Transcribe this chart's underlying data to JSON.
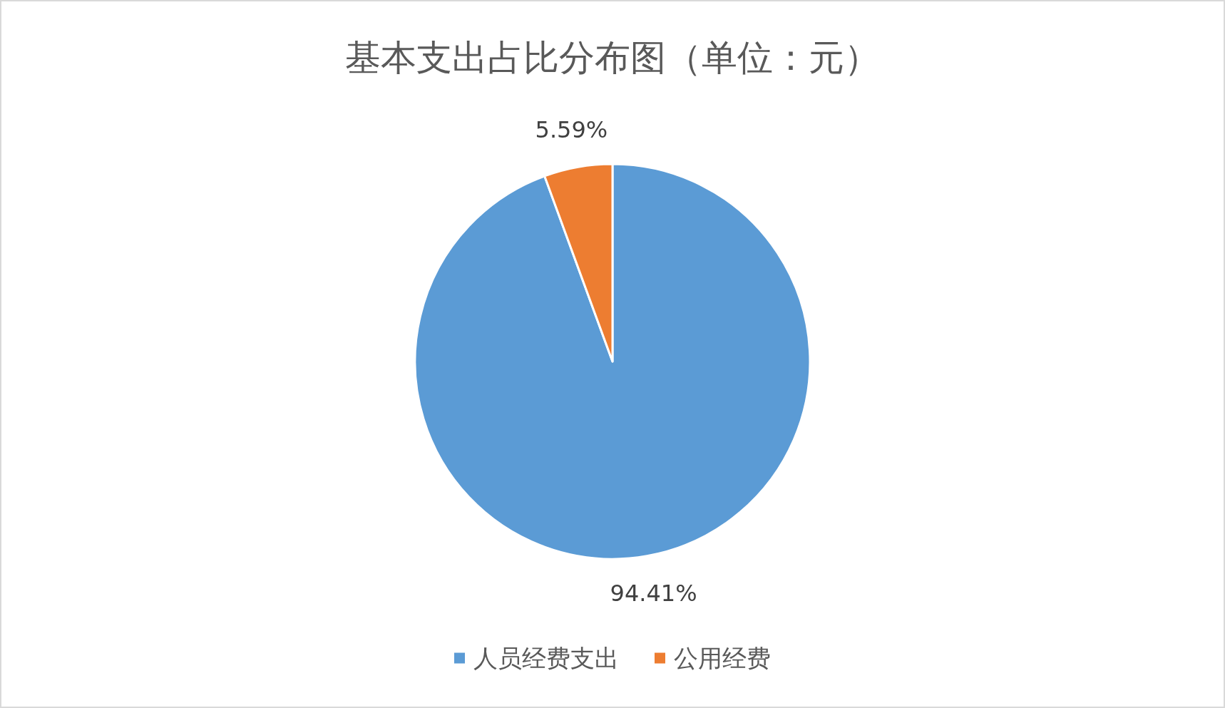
{
  "chart_data": {
    "type": "pie",
    "title": "基本支出占比分布图（单位：元）",
    "categories": [
      "人员经费支出",
      "公用经费"
    ],
    "values": [
      94.41,
      5.59
    ],
    "colors": [
      "#5b9bd5",
      "#ed7d31"
    ],
    "value_labels": [
      "94.41%",
      "5.59%"
    ],
    "legend": "bottom"
  }
}
